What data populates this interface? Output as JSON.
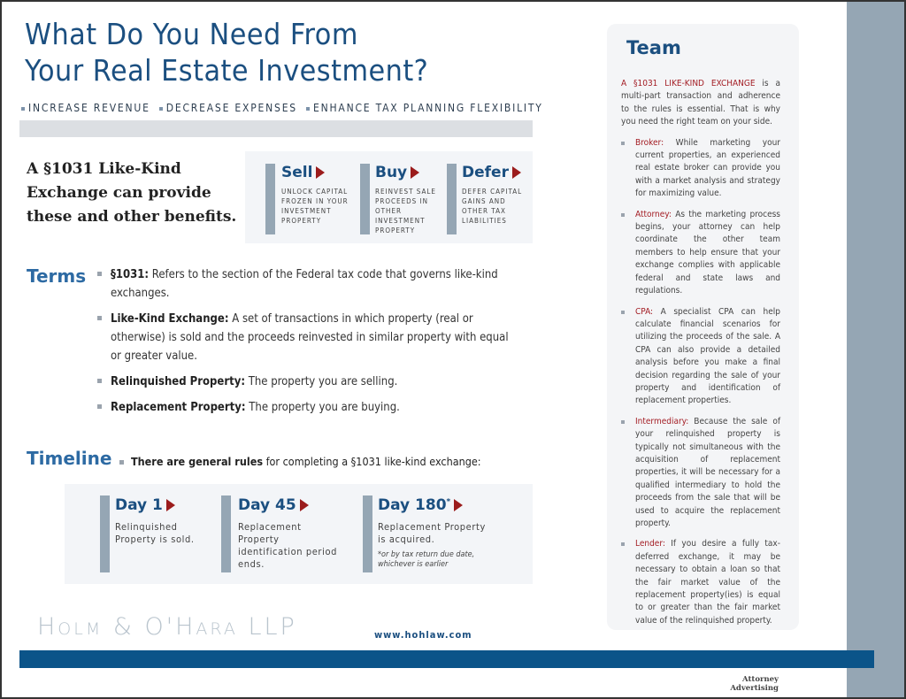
{
  "title_lines": [
    "What Do You Need From",
    "Your Real Estate Investment?"
  ],
  "goals": [
    "INCREASE REVENUE",
    "DECREASE EXPENSES",
    "ENHANCE TAX PLANNING FLEXIBILITY"
  ],
  "benefit_intro": "A §1031 Like-Kind Exchange can provide these and other benefits.",
  "benefits": [
    {
      "label": "Sell",
      "text": "UNLOCK CAPITAL FROZEN IN YOUR INVESTMENT PROPERTY"
    },
    {
      "label": "Buy",
      "text": "REINVEST SALE PROCEEDS IN OTHER INVESTMENT PROPERTY"
    },
    {
      "label": "Defer",
      "text": "DEFER CAPITAL GAINS AND OTHER TAX LIABILITIES"
    }
  ],
  "terms": {
    "heading": "Terms",
    "items": [
      {
        "term": "§1031:",
        "def": " Refers to the section of the Federal tax code that governs like-kind exchanges."
      },
      {
        "term": "Like-Kind Exchange:",
        "def": " A set of transactions in which property (real or otherwise) is sold and the proceeds reinvested in similar property with equal or greater value."
      },
      {
        "term": "Relinquished Property:",
        "def": " The property you are selling."
      },
      {
        "term": "Replacement Property:",
        "def": " The property you are buying."
      }
    ]
  },
  "timeline": {
    "heading": "Timeline",
    "intro_bold": "There are general rules",
    "intro_rest": " for completing a §1031 like-kind exchange:",
    "days": [
      {
        "label": "Day 1",
        "sup": "",
        "text": "Relinquished Property is sold."
      },
      {
        "label": "Day 45",
        "sup": "",
        "text": "Replacement Property identification period ends."
      },
      {
        "label": "Day 180",
        "sup": "*",
        "text": "Replacement Property is acquired.",
        "note": "*or by tax return due date, whichever is earlier"
      }
    ]
  },
  "team": {
    "heading": "Team",
    "intro_red": "A §1031 LIKE-KIND EXCHANGE",
    "intro_rest": " is a multi-part transaction and adherence to the rules is essential. That is why you need the right team on your side.",
    "members": [
      {
        "role": "Broker:",
        "text": " While marketing your current properties, an experienced real estate broker can provide you with a market analysis and strategy for maximizing value."
      },
      {
        "role": "Attorney:",
        "text": " As the marketing process begins, your attorney can help coordinate the other team members to help ensure that your exchange complies with applicable federal and state laws and regulations."
      },
      {
        "role": "CPA:",
        "text": " A specialist CPA can help calculate financial scenarios for utilizing the proceeds of the sale. A CPA can also provide a detailed analysis before you make a final decision regarding the sale of your property and identification of replacement properties."
      },
      {
        "role": "Intermediary:",
        "text": " Because the sale of your relinquished property is typically not simultaneous with the acquisition of replacement properties, it will be necessary for a qualified intermediary to hold the proceeds from the sale that will be used to acquire the replacement property."
      },
      {
        "role": "Lender:",
        "text": " If you desire a fully tax-deferred exchange, it may be necessary to obtain a loan so that the fair market value of the replacement property(ies) is equal to or greater than the fair market value of the relinquished property."
      }
    ]
  },
  "footer": {
    "logo": "Holm & O'Hara LLP",
    "url": "www.hohlaw.com",
    "advertising": "Attorney Advertising"
  }
}
